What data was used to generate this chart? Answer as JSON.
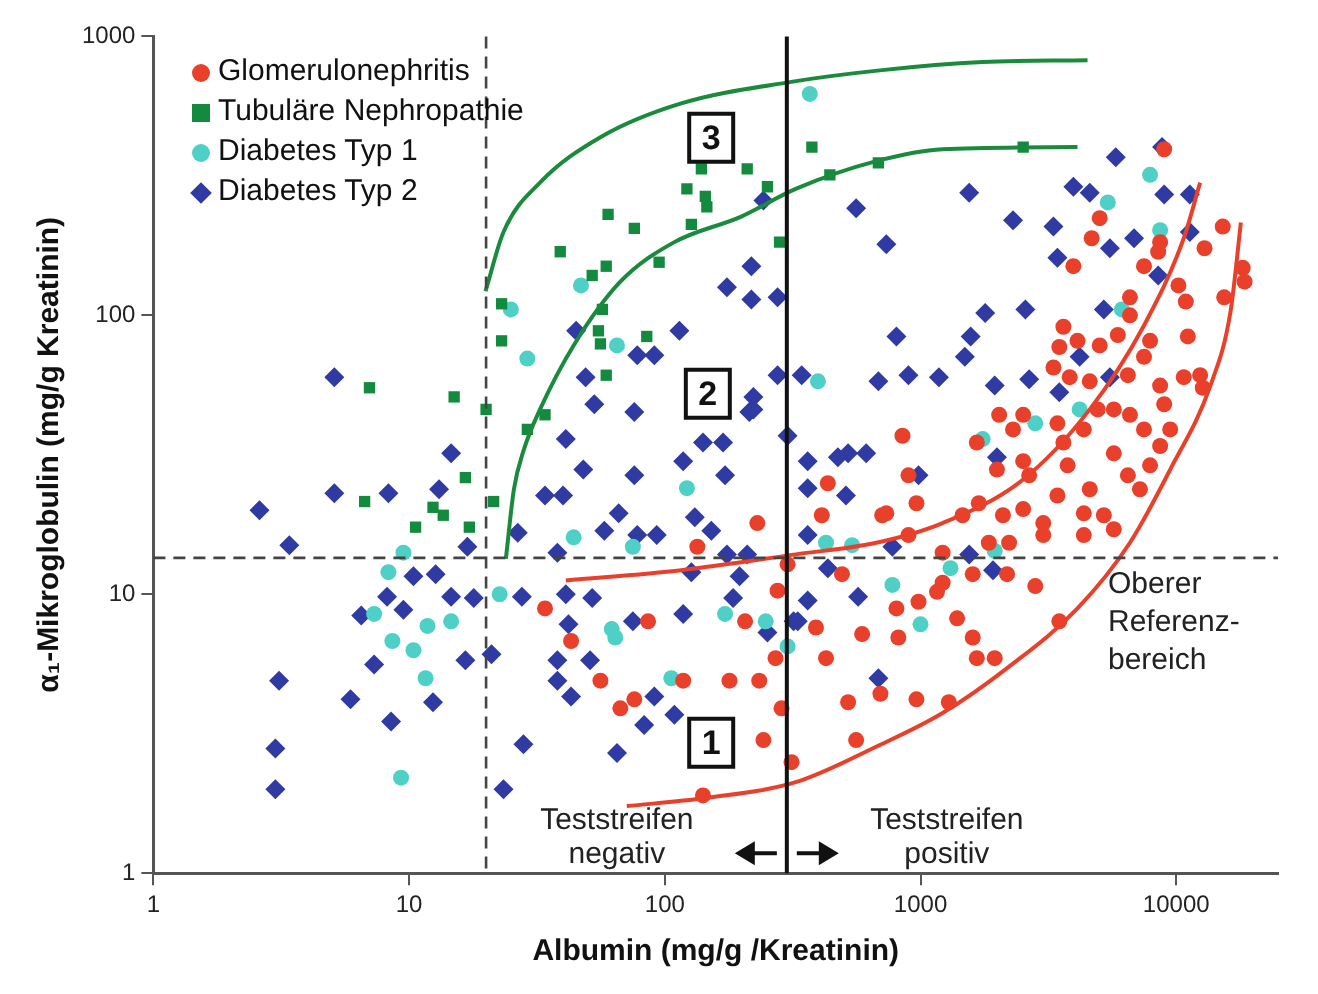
{
  "chart_data": {
    "type": "scatter",
    "xlabel": "Albumin (mg/g /Kreatinin)",
    "ylabel": "α₁-Mikroglobulin (mg/g Kreatinin)",
    "log": "xy",
    "xlim": [
      1,
      25000
    ],
    "ylim": [
      1,
      1000
    ],
    "xticks": [
      1,
      10,
      100,
      1000,
      10000
    ],
    "yticks": [
      1,
      10,
      100,
      1000
    ],
    "legend": "top left",
    "series": [
      {
        "name": "Glomerulonephritis",
        "color": "#e8402a",
        "marker": "circle",
        "x": [
          34,
          43,
          56,
          67,
          76,
          86,
          118,
          134,
          179,
          206,
          230,
          234,
          243,
          271,
          276,
          286,
          313,
          302,
          141,
          411,
          434,
          493,
          390,
          427,
          521,
          560,
          697,
          964,
          1290,
          819,
          591,
          805,
          982,
          1220,
          1160,
          1390,
          1600,
          1660,
          1950,
          2810,
          3490,
          897,
          1220,
          735,
          964,
          1460,
          1690,
          2100,
          2520,
          3020,
          3430,
          4350,
          5210,
          5700,
          4590,
          7210,
          2660,
          1990,
          2520,
          3760,
          6470,
          7900,
          897,
          708,
          3020,
          4350,
          1600,
          2180,
          1850,
          2220,
          8970,
          15200,
          18200,
          18500,
          15400,
          12900,
          8650,
          8500,
          7480,
          5020,
          4670,
          3960,
          6590,
          10200,
          10900,
          11100,
          7900,
          7480,
          10700,
          12400,
          12700,
          6590,
          5910,
          5020,
          4110,
          3490,
          3620,
          3310,
          3830,
          4590,
          6470,
          8650,
          8970,
          6590,
          7480,
          9470,
          5700,
          4930,
          4350,
          3430,
          2520,
          2300,
          3620,
          850,
          2030,
          1660,
          8650,
          5700
        ],
        "values": [
          8.9,
          6.8,
          4.9,
          3.9,
          4.2,
          8,
          4.9,
          14.8,
          4.9,
          8,
          18,
          4.9,
          3,
          5.9,
          10.3,
          3.9,
          2.5,
          12.8,
          1.9,
          19.2,
          25,
          11.8,
          7.6,
          5.9,
          4.1,
          3,
          4.4,
          4.2,
          4.1,
          7,
          7.2,
          8.9,
          9.4,
          11,
          10.2,
          8.2,
          7,
          5.9,
          5.9,
          10.7,
          8,
          16.3,
          14.1,
          19.5,
          21.2,
          19.2,
          21.2,
          19.2,
          20.2,
          18,
          22.6,
          19.5,
          19.2,
          17.1,
          23.8,
          23.8,
          26.7,
          28,
          30,
          29,
          26.7,
          29,
          26.7,
          19.2,
          16.3,
          16.3,
          11.8,
          11.8,
          15.3,
          15.3,
          394,
          208,
          148,
          132,
          116,
          174,
          183,
          169,
          150,
          223,
          189,
          150,
          116,
          128,
          112,
          84,
          81,
          71,
          60,
          61,
          55,
          100,
          85,
          78,
          81,
          77,
          91,
          65,
          60,
          58,
          61,
          56,
          48,
          44,
          39,
          39,
          46,
          46,
          39,
          41,
          44,
          39,
          35,
          37,
          44,
          35,
          34,
          32
        ]
      },
      {
        "name": "Tubuläre Nephropathie",
        "color": "#138a3e",
        "marker": "square",
        "x": [
          7,
          15,
          20,
          23,
          23,
          29,
          34,
          39,
          52,
          59,
          60,
          57,
          55,
          56,
          59,
          76,
          85,
          95,
          122,
          127,
          139,
          144,
          146,
          210,
          252,
          281,
          376,
          442,
          684,
          2520,
          6.7,
          10.6,
          12.4,
          13.6,
          16.6,
          17.2,
          21.4
        ],
        "values": [
          55,
          51,
          46,
          110,
          81,
          39,
          44,
          169,
          139,
          150,
          230,
          105,
          88,
          79,
          61,
          205,
          84,
          155,
          284,
          212,
          335,
          267,
          245,
          335,
          289,
          183,
          401,
          319,
          352,
          401,
          21.5,
          17.4,
          20.5,
          19.2,
          26.2,
          17.4,
          21.5
        ]
      },
      {
        "name": "Diabetes Typ 1",
        "color": "#4fd0c6",
        "marker": "circle",
        "x": [
          25,
          29,
          47,
          65,
          369,
          397,
          5400,
          7900,
          8650,
          6130,
          4190,
          1750,
          2810,
          122,
          44,
          75,
          9.5,
          8.3,
          7.3,
          8.6,
          10.4,
          11.8,
          14.6,
          11.6,
          9.3,
          22.6,
          62,
          64,
          106,
          172,
          248,
          302,
          427,
          540,
          776,
          1000,
          1310,
          1950
        ],
        "values": [
          105,
          70,
          128,
          78,
          622,
          58,
          254,
          319,
          202,
          105,
          46,
          36,
          41,
          24,
          16,
          14.8,
          14.1,
          12,
          8.5,
          6.8,
          6.3,
          7.7,
          8,
          5,
          2.2,
          10,
          7.5,
          7,
          5,
          8.5,
          8,
          6.5,
          15.3,
          15,
          10.8,
          7.8,
          12.4,
          14.3
        ]
      },
      {
        "name": "Diabetes Typ 2",
        "color": "#2f3aa3",
        "marker": "diamond",
        "x": [
          2.6,
          3.4,
          5.1,
          8.3,
          3.1,
          3,
          3,
          5.9,
          8.5,
          7.3,
          6.5,
          8.2,
          10.4,
          12.7,
          9.5,
          12.4,
          16.6,
          14.6,
          17.9,
          21,
          16.9,
          13.1,
          23.4,
          28,
          26.6,
          27.6,
          34,
          40,
          48,
          38,
          41,
          42,
          38,
          38,
          43,
          51,
          52,
          58,
          66,
          76,
          78,
          75,
          65,
          91,
          83,
          93,
          109,
          118,
          131,
          152,
          127,
          118,
          172,
          175,
          185,
          196,
          210,
          252,
          319,
          5.1,
          14.6,
          45,
          78,
          91,
          114,
          49,
          53,
          76,
          41,
          141,
          169,
          222,
          214,
          175,
          218,
          276,
          218,
          276,
          302,
          243,
          560,
          735,
          1550,
          2300,
          3310,
          3430,
          3960,
          4590,
          5800,
          8800,
          8970,
          11300,
          5500,
          6840,
          8500,
          11300,
          2570,
          1790,
          1570,
          1490,
          805,
          897,
          684,
          1180,
          1950,
          2660,
          3490,
          4190,
          5210,
          5500,
          222,
          343,
          521,
          613,
          362,
          362,
          434,
          570,
          362,
          331,
          684,
          776,
          1550,
          1920,
          511,
          475,
          362,
          982,
          1990
        ],
        "values": [
          20,
          15,
          23,
          23,
          4.9,
          2.8,
          2,
          4.2,
          3.5,
          5.6,
          8.4,
          9.8,
          11.6,
          11.8,
          8.8,
          4.1,
          5.8,
          9.8,
          9.7,
          6.1,
          14.8,
          23.8,
          2,
          2.9,
          16.6,
          9.8,
          22.6,
          22.6,
          28,
          14.1,
          10,
          7.8,
          5.8,
          4.9,
          4.3,
          5.8,
          9.7,
          16.9,
          19.5,
          26.7,
          16.3,
          8,
          2.7,
          4.3,
          3.4,
          16.3,
          3.7,
          30,
          18.9,
          16.9,
          12,
          8.5,
          26.7,
          13.9,
          9.7,
          11.6,
          13.9,
          7.3,
          8,
          60,
          32,
          88,
          72,
          72,
          88,
          60,
          48,
          45,
          36,
          35,
          35,
          51,
          45,
          126,
          114,
          116,
          150,
          61,
          37,
          258,
          242,
          180,
          275,
          219,
          208,
          161,
          289,
          275,
          369,
          401,
          271,
          271,
          174,
          189,
          139,
          199,
          105,
          102,
          84,
          71,
          84,
          61,
          58,
          60,
          56,
          59,
          53,
          71,
          105,
          60,
          46,
          61,
          32,
          32,
          30,
          16.3,
          12.4,
          9.8,
          9.5,
          8,
          5,
          14.8,
          13.9,
          12.2,
          22.6,
          31,
          24,
          26.7,
          31
        ]
      },
      {
        "type": "line",
        "color": "#1a8a3c",
        "x": [
          19.9,
          23.4,
          32.5,
          56,
          115,
          312,
          708,
          1750,
          4500
        ],
        "values": [
          122,
          199,
          299,
          435,
          574,
          687,
          757,
          809,
          822
        ]
      },
      {
        "type": "line",
        "color": "#1a8a3c",
        "x": [
          23.9,
          25.7,
          28.1,
          32.5,
          44,
          67,
          109,
          199,
          325,
          671,
          1220,
          4110
        ],
        "values": [
          13.4,
          23.8,
          33,
          46,
          78,
          132,
          183,
          226,
          284,
          357,
          394,
          401
        ]
      },
      {
        "type": "line",
        "color": "#e8402a",
        "x": [
          41,
          116,
          325,
          671,
          1220,
          2520,
          4590,
          7480,
          10700,
          12400
        ],
        "values": [
          11.2,
          12.2,
          13.9,
          15.3,
          18,
          25.8,
          46,
          92,
          189,
          299
        ]
      },
      {
        "type": "line",
        "color": "#e8402a",
        "x": [
          71,
          144,
          325,
          671,
          1220,
          2220,
          4110,
          6590,
          9470,
          13600,
          16300,
          17900
        ],
        "values": [
          1.74,
          1.86,
          2.12,
          2.84,
          3.75,
          5.5,
          8.9,
          15.3,
          28,
          56,
          103,
          215
        ]
      }
    ],
    "ref_lines": [
      {
        "axis": "x",
        "value": 20,
        "label": null,
        "color": "#444444",
        "line_style": "dashed"
      },
      {
        "axis": "x",
        "value": 300,
        "label": null,
        "color": "#111111",
        "line_style": "solid"
      },
      {
        "axis": "y",
        "value": 13.5,
        "label": "Oberer Referenz-bereich",
        "color": "#444444",
        "line_style": "dashed"
      }
    ],
    "annotations": [
      "3",
      "2",
      "1",
      "Teststreifen negativ",
      "Teststreifen positiv"
    ]
  }
}
